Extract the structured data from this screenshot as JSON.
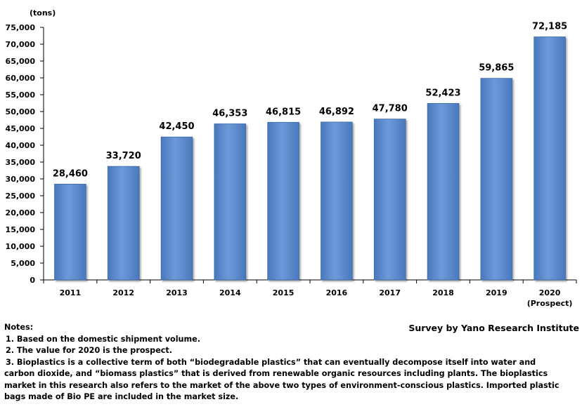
{
  "chart_data": {
    "type": "bar",
    "unit_label": "(tons)",
    "categories": [
      "2011",
      "2012",
      "2013",
      "2014",
      "2015",
      "2016",
      "2017",
      "2018",
      "2019",
      "2020"
    ],
    "category_sublabels": [
      "",
      "",
      "",
      "",
      "",
      "",
      "",
      "",
      "",
      "(Prospect)"
    ],
    "values": [
      28460,
      33720,
      42450,
      46353,
      46815,
      46892,
      47780,
      52423,
      59865,
      72185
    ],
    "value_labels": [
      "28,460",
      "33,720",
      "42,450",
      "46,353",
      "46,815",
      "46,892",
      "47,780",
      "52,423",
      "59,865",
      "72,185"
    ],
    "ylim": [
      0,
      75000
    ],
    "y_ticks": [
      0,
      5000,
      10000,
      15000,
      20000,
      25000,
      30000,
      35000,
      40000,
      45000,
      50000,
      55000,
      60000,
      65000,
      70000,
      75000
    ],
    "y_tick_labels": [
      "0",
      "5,000",
      "10,000",
      "15,000",
      "20,000",
      "25,000",
      "30,000",
      "35,000",
      "40,000",
      "45,000",
      "50,000",
      "55,000",
      "60,000",
      "65,000",
      "70,000",
      "75,000"
    ],
    "grid": false,
    "colors": {
      "bar": "#5b8bd0",
      "bar_edge": "#3e6aa8",
      "bar_highlight": "#8db0e3"
    }
  },
  "notes": {
    "heading": "Notes:",
    "lines": [
      "1. Based on the domestic shipment volume.",
      "2. The value for 2020 is the prospect.",
      "3. Bioplastics is a collective term of both “biodegradable plastics” that can eventually decompose itself into water and",
      "carbon dioxide, and “biomass plastics” that is derived from renewable organic resources including plants. The bioplastics",
      "market in this research also refers to the market of the above two types of environment-conscious plastics. Imported plastic",
      "bags made of Bio PE are included in the market size."
    ]
  },
  "source": "Survey by Yano Research Institute"
}
